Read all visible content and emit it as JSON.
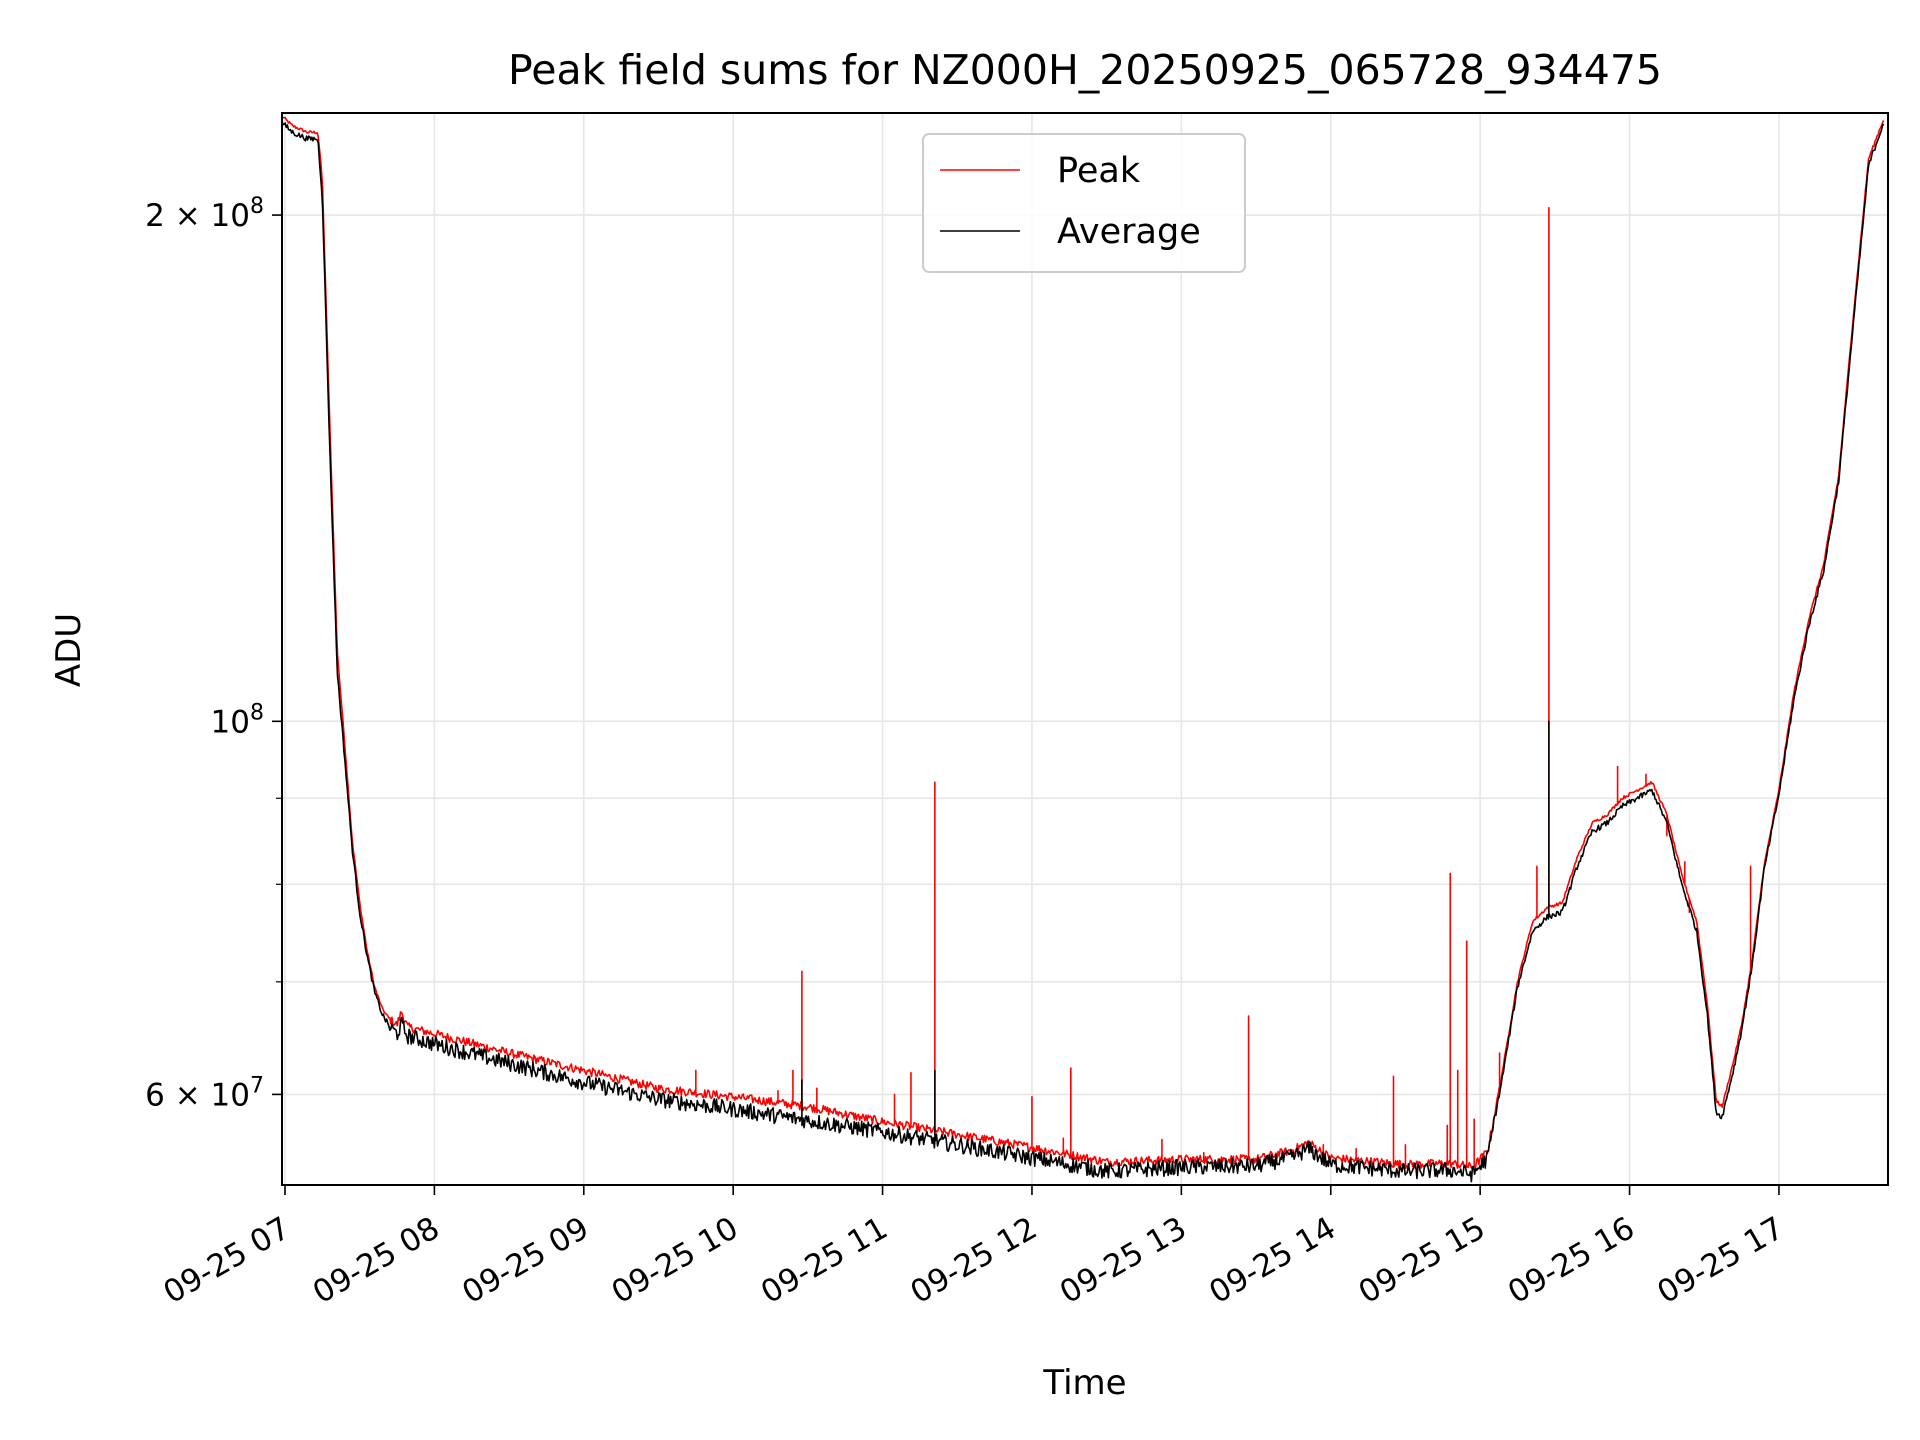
{
  "chart_data": {
    "type": "line",
    "title": "Peak field sums for NZ000H_20250925_065728_934475",
    "xlabel": "Time",
    "ylabel": "ADU",
    "yscale": "log",
    "ylim": [
      53000000,
      230000000
    ],
    "xlim_hours": [
      6.98,
      17.73
    ],
    "grid": true,
    "legend_position": "top-center",
    "x_ticks": [
      {
        "hour": 7,
        "label": "09-25 07"
      },
      {
        "hour": 8,
        "label": "09-25 08"
      },
      {
        "hour": 9,
        "label": "09-25 09"
      },
      {
        "hour": 10,
        "label": "09-25 10"
      },
      {
        "hour": 11,
        "label": "09-25 11"
      },
      {
        "hour": 12,
        "label": "09-25 12"
      },
      {
        "hour": 13,
        "label": "09-25 13"
      },
      {
        "hour": 14,
        "label": "09-25 14"
      },
      {
        "hour": 15,
        "label": "09-25 15"
      },
      {
        "hour": 16,
        "label": "09-25 16"
      },
      {
        "hour": 17,
        "label": "09-25 17"
      }
    ],
    "y_major_ticks": [
      {
        "value": 60000000,
        "mantissa": "6",
        "base": "10",
        "exponent": "7"
      },
      {
        "value": 100000000,
        "mantissa": "",
        "base": "10",
        "exponent": "8"
      },
      {
        "value": 200000000,
        "mantissa": "2",
        "base": "10",
        "exponent": "8"
      }
    ],
    "y_minor_gridlines": [
      70000000,
      80000000,
      90000000
    ],
    "series": [
      {
        "name": "Peak",
        "color": "#ff0000",
        "points": [
          [
            6.98,
            229000000
          ],
          [
            7.05,
            226000000
          ],
          [
            7.15,
            224000000
          ],
          [
            7.22,
            224000000
          ],
          [
            7.25,
            210000000
          ],
          [
            7.3,
            150000000
          ],
          [
            7.35,
            110000000
          ],
          [
            7.4,
            97000000
          ],
          [
            7.45,
            85000000
          ],
          [
            7.5,
            78000000
          ],
          [
            7.55,
            73000000
          ],
          [
            7.6,
            69500000
          ],
          [
            7.65,
            67500000
          ],
          [
            7.7,
            66500000
          ],
          [
            7.75,
            66000000
          ],
          [
            7.78,
            67200000
          ],
          [
            7.82,
            65800000
          ],
          [
            8.0,
            65200000
          ],
          [
            8.5,
            63500000
          ],
          [
            9.0,
            62000000
          ],
          [
            9.5,
            60500000
          ],
          [
            10.0,
            59800000
          ],
          [
            10.5,
            59000000
          ],
          [
            11.0,
            57800000
          ],
          [
            11.5,
            56800000
          ],
          [
            12.0,
            55800000
          ],
          [
            12.5,
            54700000
          ],
          [
            13.0,
            54900000
          ],
          [
            13.5,
            54900000
          ],
          [
            13.75,
            55600000
          ],
          [
            13.85,
            56200000
          ],
          [
            14.0,
            55000000
          ],
          [
            14.5,
            54500000
          ],
          [
            14.8,
            54600000
          ],
          [
            14.95,
            54300000
          ],
          [
            15.05,
            55500000
          ],
          [
            15.15,
            62000000
          ],
          [
            15.25,
            70000000
          ],
          [
            15.35,
            76000000
          ],
          [
            15.45,
            77500000
          ],
          [
            15.55,
            78000000
          ],
          [
            15.65,
            83000000
          ],
          [
            15.75,
            87000000
          ],
          [
            15.85,
            88000000
          ],
          [
            15.95,
            90000000
          ],
          [
            16.05,
            91000000
          ],
          [
            16.15,
            92000000
          ],
          [
            16.25,
            88000000
          ],
          [
            16.35,
            81000000
          ],
          [
            16.45,
            76000000
          ],
          [
            16.52,
            68000000
          ],
          [
            16.58,
            59500000
          ],
          [
            16.62,
            59000000
          ],
          [
            16.7,
            63000000
          ],
          [
            16.75,
            66000000
          ],
          [
            16.82,
            72000000
          ],
          [
            16.9,
            82000000
          ],
          [
            17.0,
            91000000
          ],
          [
            17.1,
            104000000
          ],
          [
            17.2,
            115000000
          ],
          [
            17.3,
            124000000
          ],
          [
            17.4,
            140000000
          ],
          [
            17.5,
            175000000
          ],
          [
            17.6,
            216000000
          ],
          [
            17.7,
            228000000
          ]
        ],
        "spikes": [
          [
            9.75,
            62000000
          ],
          [
            10.3,
            60300000
          ],
          [
            10.4,
            62000000
          ],
          [
            10.46,
            71000000
          ],
          [
            10.56,
            60500000
          ],
          [
            11.08,
            60000000
          ],
          [
            11.19,
            61800000
          ],
          [
            11.35,
            92000000
          ],
          [
            12.0,
            59800000
          ],
          [
            12.21,
            56500000
          ],
          [
            12.26,
            62200000
          ],
          [
            12.87,
            56400000
          ],
          [
            13.15,
            55400000
          ],
          [
            13.45,
            66800000
          ],
          [
            13.95,
            56000000
          ],
          [
            14.17,
            55700000
          ],
          [
            14.42,
            61500000
          ],
          [
            14.5,
            56000000
          ],
          [
            14.78,
            57500000
          ],
          [
            14.8,
            81200000
          ],
          [
            14.85,
            62000000
          ],
          [
            14.91,
            74000000
          ],
          [
            14.96,
            58000000
          ],
          [
            15.13,
            63500000
          ],
          [
            15.38,
            82000000
          ],
          [
            15.46,
            202000000
          ],
          [
            15.92,
            94000000
          ],
          [
            16.11,
            93000000
          ],
          [
            16.25,
            85500000
          ],
          [
            16.37,
            82500000
          ],
          [
            16.4,
            77000000
          ],
          [
            16.81,
            82000000
          ]
        ]
      },
      {
        "name": "Average",
        "color": "#000000",
        "points": [
          [
            6.98,
            227000000
          ],
          [
            7.05,
            224000000
          ],
          [
            7.15,
            222000000
          ],
          [
            7.22,
            222000000
          ],
          [
            7.25,
            205000000
          ],
          [
            7.3,
            145000000
          ],
          [
            7.35,
            107000000
          ],
          [
            7.4,
            95000000
          ],
          [
            7.45,
            84000000
          ],
          [
            7.5,
            77000000
          ],
          [
            7.55,
            72500000
          ],
          [
            7.6,
            69000000
          ],
          [
            7.65,
            67000000
          ],
          [
            7.7,
            65800000
          ],
          [
            7.75,
            65200000
          ],
          [
            7.78,
            66000000
          ],
          [
            7.82,
            65000000
          ],
          [
            8.0,
            64300000
          ],
          [
            8.5,
            62600000
          ],
          [
            9.0,
            61000000
          ],
          [
            9.5,
            59600000
          ],
          [
            10.0,
            58800000
          ],
          [
            10.5,
            57900000
          ],
          [
            11.0,
            57000000
          ],
          [
            11.5,
            56000000
          ],
          [
            12.0,
            55000000
          ],
          [
            12.5,
            54000000
          ],
          [
            13.0,
            54300000
          ],
          [
            13.5,
            54400000
          ],
          [
            13.75,
            55100000
          ],
          [
            13.85,
            55700000
          ],
          [
            14.0,
            54500000
          ],
          [
            14.5,
            54000000
          ],
          [
            14.8,
            54100000
          ],
          [
            14.95,
            53800000
          ],
          [
            15.05,
            55000000
          ],
          [
            15.15,
            61500000
          ],
          [
            15.25,
            69500000
          ],
          [
            15.35,
            75000000
          ],
          [
            15.45,
            76500000
          ],
          [
            15.55,
            77000000
          ],
          [
            15.65,
            82000000
          ],
          [
            15.75,
            86000000
          ],
          [
            15.85,
            87000000
          ],
          [
            15.95,
            89000000
          ],
          [
            16.05,
            90000000
          ],
          [
            16.15,
            91000000
          ],
          [
            16.25,
            87000000
          ],
          [
            16.35,
            80000000
          ],
          [
            16.45,
            75000000
          ],
          [
            16.52,
            67000000
          ],
          [
            16.58,
            58500000
          ],
          [
            16.62,
            58200000
          ],
          [
            16.7,
            62300000
          ],
          [
            16.75,
            65500000
          ],
          [
            16.82,
            71500000
          ],
          [
            16.9,
            81500000
          ],
          [
            17.0,
            90500000
          ],
          [
            17.1,
            103000000
          ],
          [
            17.2,
            114000000
          ],
          [
            17.3,
            123000000
          ],
          [
            17.4,
            139000000
          ],
          [
            17.5,
            173000000
          ],
          [
            17.6,
            214000000
          ],
          [
            17.7,
            227000000
          ]
        ],
        "spikes": [
          [
            10.46,
            61200000
          ],
          [
            11.35,
            62000000
          ],
          [
            15.46,
            100000000
          ]
        ]
      }
    ]
  }
}
